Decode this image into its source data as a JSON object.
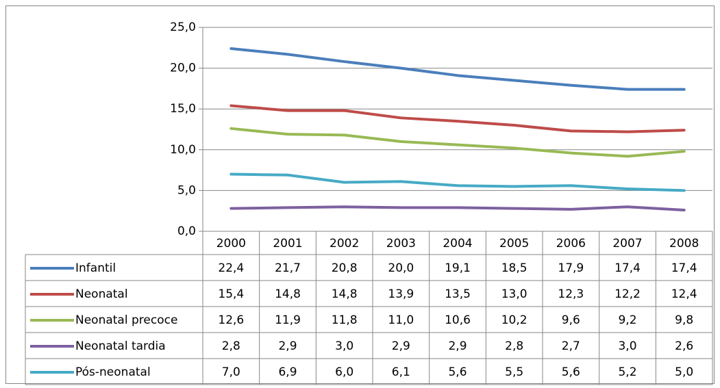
{
  "chart_data": {
    "type": "line",
    "categories": [
      "2000",
      "2001",
      "2002",
      "2003",
      "2004",
      "2005",
      "2006",
      "2007",
      "2008"
    ],
    "ylim": [
      0,
      25
    ],
    "yticks": [
      {
        "value": 0,
        "label": "0,0"
      },
      {
        "value": 5,
        "label": "5,0"
      },
      {
        "value": 10,
        "label": "10,0"
      },
      {
        "value": 15,
        "label": "15,0"
      },
      {
        "value": 20,
        "label": "20,0"
      },
      {
        "value": 25,
        "label": "25,0"
      }
    ],
    "grid": true,
    "series": [
      {
        "name": "Infantil",
        "color": "#4a7ebb",
        "values": [
          22.4,
          21.7,
          20.8,
          20.0,
          19.1,
          18.5,
          17.9,
          17.4,
          17.4
        ],
        "value_labels": [
          "22,4",
          "21,7",
          "20,8",
          "20,0",
          "19,1",
          "18,5",
          "17,9",
          "17,4",
          "17,4"
        ]
      },
      {
        "name": "Neonatal",
        "color": "#be4b48",
        "values": [
          15.4,
          14.8,
          14.8,
          13.9,
          13.5,
          13.0,
          12.3,
          12.2,
          12.4
        ],
        "value_labels": [
          "15,4",
          "14,8",
          "14,8",
          "13,9",
          "13,5",
          "13,0",
          "12,3",
          "12,2",
          "12,4"
        ]
      },
      {
        "name": "Neonatal precoce",
        "color": "#98b954",
        "values": [
          12.6,
          11.9,
          11.8,
          11.0,
          10.6,
          10.2,
          9.6,
          9.2,
          9.8
        ],
        "value_labels": [
          "12,6",
          "11,9",
          "11,8",
          "11,0",
          "10,6",
          "10,2",
          "9,6",
          "9,2",
          "9,8"
        ]
      },
      {
        "name": "Neonatal tardia",
        "color": "#7d60a0",
        "values": [
          2.8,
          2.9,
          3.0,
          2.9,
          2.9,
          2.8,
          2.7,
          3.0,
          2.6
        ],
        "value_labels": [
          "2,8",
          "2,9",
          "3,0",
          "2,9",
          "2,9",
          "2,8",
          "2,7",
          "3,0",
          "2,6"
        ]
      },
      {
        "name": "Pós-neonatal",
        "color": "#46aac5",
        "values": [
          7.0,
          6.9,
          6.0,
          6.1,
          5.6,
          5.5,
          5.6,
          5.2,
          5.0
        ],
        "value_labels": [
          "7,0",
          "6,9",
          "6,0",
          "6,1",
          "5,6",
          "5,5",
          "5,6",
          "5,2",
          "5,0"
        ]
      }
    ]
  }
}
